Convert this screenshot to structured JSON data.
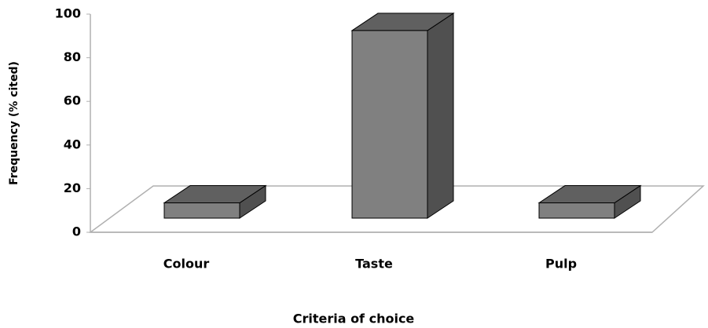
{
  "chart_data": {
    "type": "bar3d",
    "categories": [
      "Colour",
      "Taste",
      "Pulp"
    ],
    "values": [
      7,
      86,
      7
    ],
    "color": "#808080",
    "xlabel": "Criteria of choice",
    "ylabel": "Frequency (% cited)",
    "ylim": [
      0,
      100
    ],
    "yticks": [
      0,
      20,
      40,
      60,
      80,
      100
    ]
  }
}
